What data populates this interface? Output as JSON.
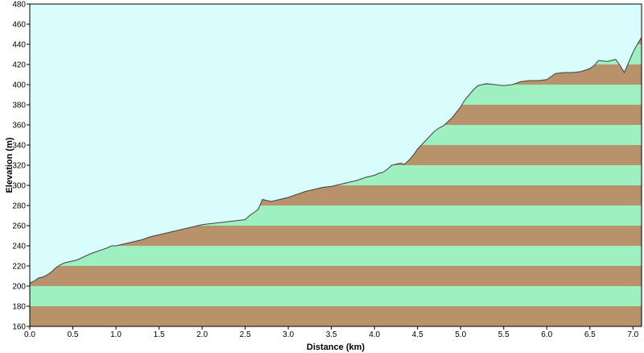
{
  "chart_data": {
    "type": "area",
    "title": "",
    "xlabel": "Distance  (km)",
    "ylabel": "Elevation (m)",
    "xlim": [
      0,
      7.1
    ],
    "ylim": [
      160,
      480
    ],
    "x_ticks": [
      "0.0",
      "0.5",
      "1.0",
      "1.5",
      "2.0",
      "2.5",
      "3.0",
      "3.5",
      "4.0",
      "4.5",
      "5.0",
      "5.5",
      "6.0",
      "6.5",
      "7.0"
    ],
    "y_ticks": [
      "160",
      "180",
      "200",
      "220",
      "240",
      "260",
      "280",
      "300",
      "320",
      "340",
      "360",
      "380",
      "400",
      "420",
      "440",
      "460",
      "480"
    ],
    "grid": false,
    "legend": "none",
    "colors": {
      "sky": "#d9fcfc",
      "band_brown": "#b8926a",
      "band_green": "#9ef0c0",
      "profile_line": "#404040"
    },
    "band_height_m": 20,
    "series": [
      {
        "x": [
          0.0,
          0.05,
          0.1,
          0.15,
          0.2,
          0.25,
          0.3,
          0.35,
          0.4,
          0.45,
          0.5,
          0.55,
          0.6,
          0.7,
          0.8,
          0.9,
          0.95,
          1.0,
          1.05,
          1.1,
          1.2,
          1.3,
          1.4,
          1.5,
          1.6,
          1.7,
          1.8,
          1.9,
          2.0,
          2.1,
          2.2,
          2.3,
          2.4,
          2.5,
          2.55,
          2.6,
          2.65,
          2.7,
          2.8,
          2.9,
          3.0,
          3.1,
          3.2,
          3.3,
          3.4,
          3.5,
          3.6,
          3.7,
          3.8,
          3.9,
          4.0,
          4.05,
          4.1,
          4.15,
          4.2,
          4.3,
          4.35,
          4.4,
          4.45,
          4.5,
          4.6,
          4.7,
          4.75,
          4.8,
          4.9,
          5.0,
          5.05,
          5.1,
          5.15,
          5.2,
          5.3,
          5.4,
          5.5,
          5.6,
          5.7,
          5.8,
          5.9,
          6.0,
          6.05,
          6.1,
          6.2,
          6.3,
          6.4,
          6.5,
          6.55,
          6.6,
          6.7,
          6.8,
          6.85,
          6.9,
          7.0,
          7.05,
          7.1
        ],
        "y": [
          203,
          205,
          208,
          209,
          211,
          214,
          218,
          221,
          223,
          224,
          225,
          226,
          228,
          232,
          235,
          238,
          240,
          240,
          241,
          242,
          244,
          246,
          249,
          251,
          253,
          255,
          257,
          259,
          261,
          262,
          263,
          264,
          265,
          266,
          270,
          273,
          276,
          286,
          284,
          286,
          288,
          291,
          294,
          296,
          298,
          299,
          301,
          303,
          305,
          308,
          310,
          312,
          313,
          316,
          320,
          322,
          321,
          325,
          330,
          336,
          345,
          354,
          357,
          359,
          367,
          378,
          385,
          390,
          395,
          399,
          401,
          400,
          399,
          400,
          403,
          404,
          404,
          405,
          408,
          411,
          412,
          412,
          413,
          416,
          419,
          424,
          423,
          425,
          419,
          412,
          432,
          440,
          447
        ]
      }
    ]
  }
}
